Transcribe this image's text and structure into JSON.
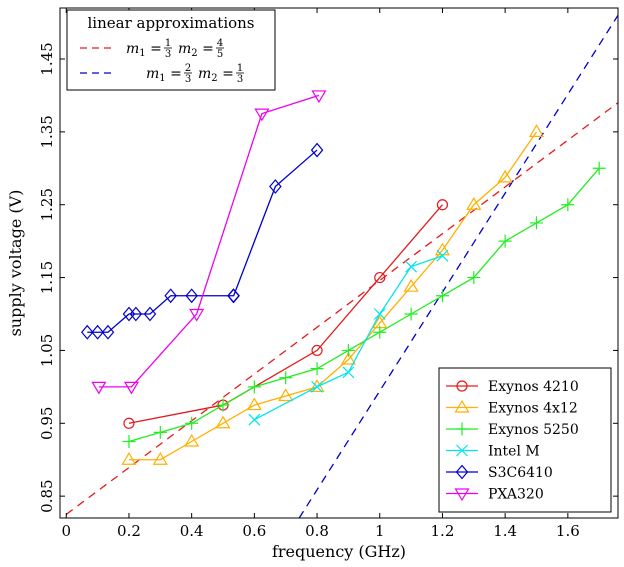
{
  "chart_data": {
    "type": "line",
    "xlabel": "frequency (GHz)",
    "ylabel": "supply voltage (V)",
    "xlim": [
      -0.02,
      1.76
    ],
    "ylim": [
      0.82,
      1.52
    ],
    "xticks": [
      0,
      0.2,
      0.4,
      0.6,
      0.8,
      1,
      1.2,
      1.4,
      1.6
    ],
    "xtick_labels": [
      "0",
      "0.2",
      "0.4",
      "0.6",
      "0.8",
      "1",
      "1.2",
      "1.4",
      "1.6"
    ],
    "yticks": [
      0.85,
      0.95,
      1.05,
      1.15,
      1.25,
      1.35,
      1.45
    ],
    "ytick_labels": [
      "0.85",
      "0.95",
      "1.05",
      "1.15",
      "1.25",
      "1.35",
      "1.45"
    ],
    "grid": false,
    "series": [
      {
        "name": "Exynos 4210",
        "color": "#e41a1c",
        "marker": "circle",
        "x": [
          0.2,
          0.5,
          0.8,
          1.0,
          1.2
        ],
        "y": [
          0.95,
          0.975,
          1.05,
          1.15,
          1.25
        ]
      },
      {
        "name": "Exynos 4x12",
        "color": "#ffb000",
        "marker": "triangle-up",
        "x": [
          0.2,
          0.3,
          0.4,
          0.5,
          0.6,
          0.7,
          0.8,
          0.9,
          1.0,
          1.1,
          1.2,
          1.3,
          1.4,
          1.5
        ],
        "y": [
          0.9,
          0.9,
          0.925,
          0.95,
          0.975,
          0.9875,
          1.0,
          1.0375,
          1.0875,
          1.1375,
          1.1875,
          1.25,
          1.2875,
          1.35
        ]
      },
      {
        "name": "Exynos 5250",
        "color": "#22ee22",
        "marker": "plus",
        "x": [
          0.2,
          0.3,
          0.4,
          0.5,
          0.6,
          0.7,
          0.8,
          0.9,
          1.0,
          1.1,
          1.2,
          1.3,
          1.4,
          1.5,
          1.6,
          1.7
        ],
        "y": [
          0.925,
          0.9375,
          0.95,
          0.975,
          1.0,
          1.0125,
          1.025,
          1.05,
          1.075,
          1.1,
          1.125,
          1.15,
          1.2,
          1.225,
          1.25,
          1.3
        ]
      },
      {
        "name": "Intel M",
        "color": "#00e5ee",
        "marker": "x",
        "x": [
          0.6,
          0.8,
          0.9,
          1.0,
          1.1,
          1.2
        ],
        "y": [
          0.955,
          1.0,
          1.02,
          1.1,
          1.165,
          1.18
        ]
      },
      {
        "name": "S3C6410",
        "color": "#0000cc",
        "marker": "diamond",
        "x": [
          0.067,
          0.1,
          0.133,
          0.2,
          0.222,
          0.267,
          0.333,
          0.4,
          0.533,
          0.534,
          0.667,
          0.8
        ],
        "y": [
          1.075,
          1.075,
          1.075,
          1.1,
          1.1,
          1.1,
          1.125,
          1.125,
          1.125,
          1.125,
          1.275,
          1.325
        ]
      },
      {
        "name": "PXA320",
        "color": "#ee00ee",
        "marker": "triangle-down",
        "x": [
          0.104,
          0.208,
          0.416,
          0.624,
          0.806
        ],
        "y": [
          1.0,
          1.0,
          1.1,
          1.375,
          1.4
        ]
      }
    ],
    "approximations": [
      {
        "m1": "1/3",
        "m2": "4/5",
        "color": "#e41a1c",
        "dash": "dashed",
        "x": [
          0.0,
          1.76
        ],
        "y": [
          0.825,
          1.39
        ]
      },
      {
        "m1": "2/3",
        "m2": "1/3",
        "color": "#0000cc",
        "dash": "dashed",
        "x": [
          0.743,
          1.76
        ],
        "y": [
          0.82,
          1.51
        ]
      }
    ],
    "approx_legend": {
      "title": "linear approximations",
      "placement": "top-left"
    },
    "legend_placement": "bottom-right"
  }
}
